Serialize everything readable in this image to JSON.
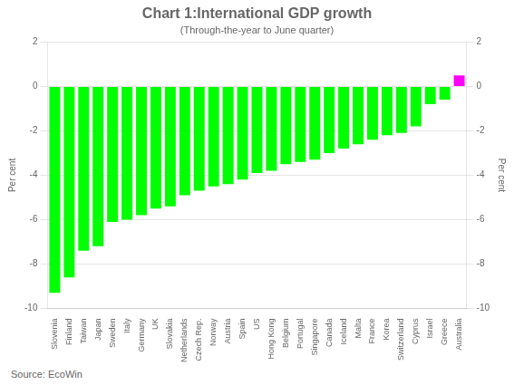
{
  "chart_data": {
    "type": "bar",
    "title": "Chart 1:International GDP growth",
    "subtitle": "(Through-the-year to June quarter)",
    "ylabel": "Per cent",
    "y2label": "Per cent",
    "source": "Source: EcoWin",
    "categories": [
      "Slovenia",
      "Finland",
      "Taiwan",
      "Japan",
      "Sweden",
      "Italy",
      "Germany",
      "UK",
      "Slovakia",
      "Netherlands",
      "Czech Rep.",
      "Norway",
      "Austria",
      "Spain",
      "US",
      "Hong Kong",
      "Belgium",
      "Portugal",
      "Singapore",
      "Canada",
      "Iceland",
      "Malta",
      "France",
      "Korea",
      "Switzerland",
      "Cyprus",
      "Israel",
      "Greece",
      "Australia"
    ],
    "values": [
      -9.3,
      -8.6,
      -7.4,
      -7.2,
      -6.1,
      -6.0,
      -5.8,
      -5.5,
      -5.4,
      -4.9,
      -4.7,
      -4.5,
      -4.4,
      -4.2,
      -3.9,
      -3.8,
      -3.5,
      -3.4,
      -3.3,
      -3.0,
      -2.8,
      -2.6,
      -2.4,
      -2.2,
      -2.1,
      -1.8,
      -0.8,
      -0.6,
      0.5
    ],
    "colors": [
      "#00ff00",
      "#00ff00",
      "#00ff00",
      "#00ff00",
      "#00ff00",
      "#00ff00",
      "#00ff00",
      "#00ff00",
      "#00ff00",
      "#00ff00",
      "#00ff00",
      "#00ff00",
      "#00ff00",
      "#00ff00",
      "#00ff00",
      "#00ff00",
      "#00ff00",
      "#00ff00",
      "#00ff00",
      "#00ff00",
      "#00ff00",
      "#00ff00",
      "#00ff00",
      "#00ff00",
      "#00ff00",
      "#00ff00",
      "#00ff00",
      "#00ff00",
      "#ff00ff"
    ],
    "ylim": [
      -10,
      2
    ],
    "yticks": [
      -10,
      -8,
      -6,
      -4,
      -2,
      0,
      2
    ],
    "y2lim": [
      -10,
      2
    ],
    "y2ticks": [
      -10,
      -8,
      -6,
      -4,
      -2,
      0,
      2
    ],
    "grid": true
  }
}
